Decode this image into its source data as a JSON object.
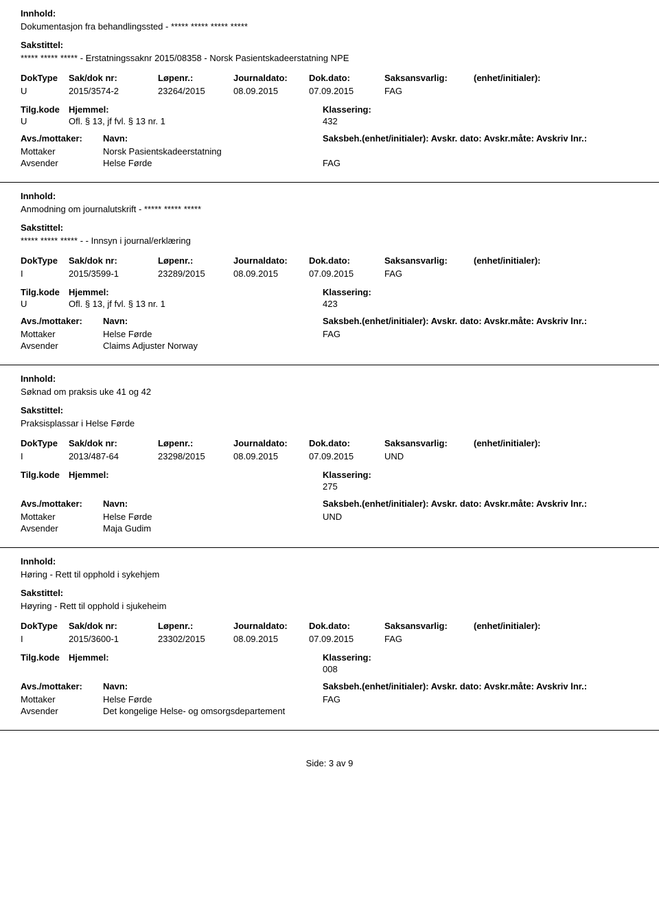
{
  "labels": {
    "innhold": "Innhold:",
    "sakstittel": "Sakstittel:",
    "doktype": "DokType",
    "sakdoknr": "Sak/dok nr:",
    "lopenr": "Løpenr.:",
    "journaldato": "Journaldato:",
    "dokdato": "Dok.dato:",
    "saksansvarlig": "Saksansvarlig:",
    "enhet": "(enhet/initialer):",
    "tilgkode": "Tilg.kode",
    "hjemmel": "Hjemmel:",
    "klassering": "Klassering:",
    "avsmottaker": "Avs./mottaker:",
    "navn": "Navn:",
    "saksbeh_full": "Saksbeh.(enhet/initialer): Avskr. dato:  Avskr.måte:  Avskriv lnr.:"
  },
  "entries": [
    {
      "innhold": "Dokumentasjon fra behandlingssted - ***** ***** ***** *****",
      "sakstittel": "***** ***** ***** - Erstatningssaknr 2015/08358 - Norsk Pasientskadeerstatning NPE",
      "doktype": "U",
      "sakdoknr": "2015/3574-2",
      "lopenr": "23264/2015",
      "journaldato": "08.09.2015",
      "dokdato": "07.09.2015",
      "saksansvarlig": "FAG",
      "enhet": "",
      "tilgkode": "U",
      "hjemmel": "Ofl. § 13, jf fvl. § 13 nr. 1",
      "klassering": "432",
      "parties": [
        {
          "role": "Mottaker",
          "name": "Norsk Pasientskadeerstatning",
          "code": ""
        },
        {
          "role": "Avsender",
          "name": "Helse Førde",
          "code": "FAG"
        }
      ]
    },
    {
      "innhold": "Anmodning om journalutskrift - ***** ***** *****",
      "sakstittel": "***** ***** ***** -  - Innsyn i journal/erklæring",
      "doktype": "I",
      "sakdoknr": "2015/3599-1",
      "lopenr": "23289/2015",
      "journaldato": "08.09.2015",
      "dokdato": "07.09.2015",
      "saksansvarlig": "FAG",
      "enhet": "",
      "tilgkode": "U",
      "hjemmel": "Ofl. § 13, jf fvl. § 13 nr. 1",
      "klassering": "423",
      "parties": [
        {
          "role": "Mottaker",
          "name": "Helse Førde",
          "code": "FAG"
        },
        {
          "role": "Avsender",
          "name": "Claims Adjuster Norway",
          "code": ""
        }
      ]
    },
    {
      "innhold": "Søknad om praksis uke 41 og 42",
      "sakstittel": "Praksisplassar i Helse Førde",
      "doktype": "I",
      "sakdoknr": "2013/487-64",
      "lopenr": "23298/2015",
      "journaldato": "08.09.2015",
      "dokdato": "07.09.2015",
      "saksansvarlig": "UND",
      "enhet": "",
      "tilgkode": "",
      "hjemmel": "",
      "klassering": "275",
      "parties": [
        {
          "role": "Mottaker",
          "name": "Helse Førde",
          "code": "UND"
        },
        {
          "role": "Avsender",
          "name": "Maja Gudim",
          "code": ""
        }
      ]
    },
    {
      "innhold": "Høring - Rett til opphold i sykehjem",
      "sakstittel": "Høyring - Rett til opphold i sjukeheim",
      "doktype": "I",
      "sakdoknr": "2015/3600-1",
      "lopenr": "23302/2015",
      "journaldato": "08.09.2015",
      "dokdato": "07.09.2015",
      "saksansvarlig": "FAG",
      "enhet": "",
      "tilgkode": "",
      "hjemmel": "",
      "klassering": "008",
      "parties": [
        {
          "role": "Mottaker",
          "name": "Helse Førde",
          "code": "FAG"
        },
        {
          "role": "Avsender",
          "name": "Det kongelige Helse- og omsorgsdepartement",
          "code": ""
        }
      ]
    }
  ],
  "footer": "Side: 3 av 9"
}
